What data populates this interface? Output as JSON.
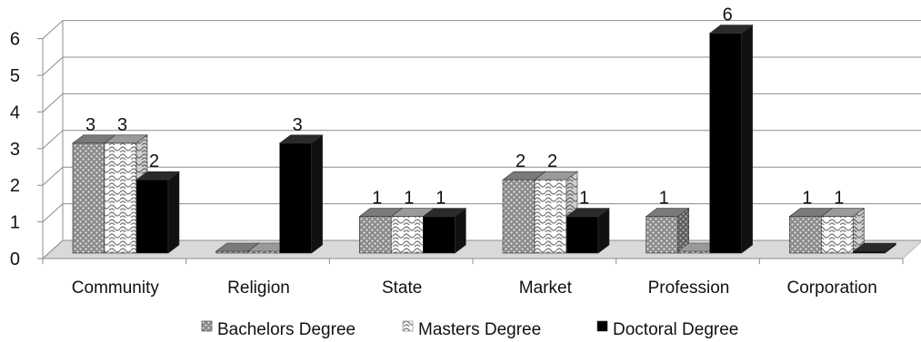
{
  "chart_data": {
    "type": "bar",
    "style": "3d-clustered-column",
    "categories": [
      "Community",
      "Religion",
      "State",
      "Market",
      "Profession",
      "Corporation"
    ],
    "series": [
      {
        "name": "Bachelors Degree",
        "values": [
          3,
          0,
          1,
          2,
          1,
          1
        ],
        "fill": "pattern-dots-gray"
      },
      {
        "name": "Masters Degree",
        "values": [
          3,
          0,
          1,
          2,
          0,
          1
        ],
        "fill": "pattern-waves-gray"
      },
      {
        "name": "Doctoral Degree",
        "values": [
          2,
          3,
          1,
          1,
          6,
          0
        ],
        "fill": "#000000"
      }
    ],
    "data_labels": [
      [
        "3",
        "",
        "1",
        "2",
        "1",
        "1"
      ],
      [
        "3",
        "",
        "1",
        "2",
        "",
        "1"
      ],
      [
        "2",
        "3",
        "1",
        "1",
        "6",
        ""
      ]
    ],
    "yticks": [
      "0",
      "1",
      "2",
      "3",
      "4",
      "5",
      "6"
    ],
    "ylim": [
      0,
      6
    ],
    "grid": true,
    "legend_position": "bottom",
    "title": "",
    "xlabel": "",
    "ylabel": ""
  }
}
